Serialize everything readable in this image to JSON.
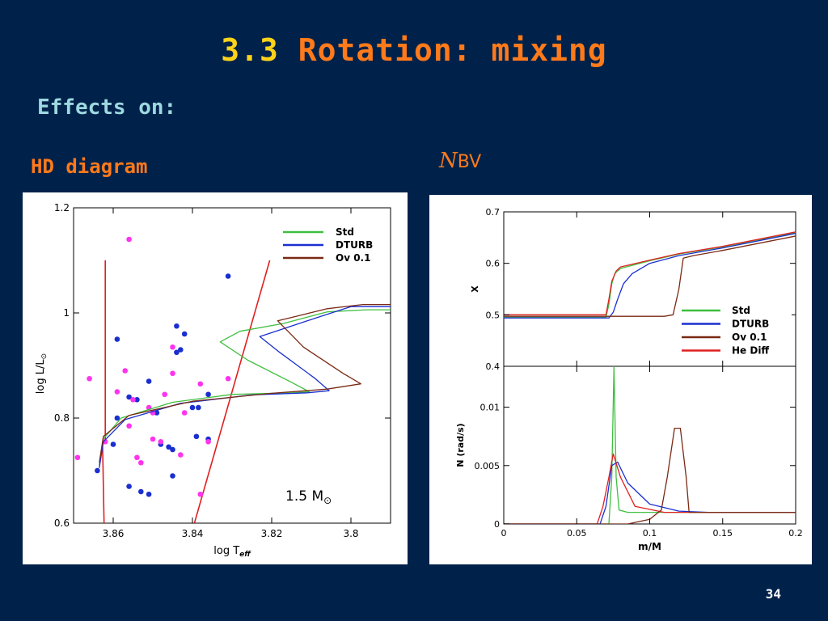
{
  "slide": {
    "title_number": "3.3",
    "title_text": "Rotation: mixing",
    "subtitle": "Effects on:",
    "label_left": "HD diagram",
    "label_right_symbol": "N",
    "label_right_sub": "BV",
    "page_number": "34"
  },
  "colors": {
    "background": "#00224a",
    "title_number": "#ffd21a",
    "title_text": "#ff7a1a",
    "subtitle": "#9ed8e0",
    "std": "#3fbf3f",
    "dturb": "#1a2fd0",
    "ov": "#7a2a14",
    "hediff": "#e02020",
    "dot_blue": "#1a2fd0",
    "dot_magenta": "#ff33ee"
  },
  "chart_data": [
    {
      "type": "line",
      "name": "HR diagram",
      "xlabel": "log T",
      "xlabel_sub": "eff",
      "ylabel": "log L/L",
      "ylabel_sub": "⊙",
      "xlim": [
        3.87,
        3.79
      ],
      "ylim": [
        0.6,
        1.2
      ],
      "x_ticks": [
        "3.86",
        "3.84",
        "3.82",
        "3.8"
      ],
      "x_tick_values": [
        3.86,
        3.84,
        3.82,
        3.8
      ],
      "y_ticks": [
        "0.6",
        "0.8",
        "1",
        "1.2"
      ],
      "y_tick_values": [
        0.6,
        0.8,
        1.0,
        1.2
      ],
      "annotation": "1.5 M",
      "annotation_sub": "⊙",
      "legend": [
        "Std",
        "DTURB",
        "Ov 0.1"
      ],
      "series": [
        {
          "name": "Std",
          "color": "#3fbf3f",
          "points": [
            [
              3.8635,
              0.71
            ],
            [
              3.8625,
              0.76
            ],
            [
              3.858,
              0.8
            ],
            [
              3.845,
              0.83
            ],
            [
              3.83,
              0.845
            ],
            [
              3.815,
              0.848
            ],
            [
              3.8105,
              0.85
            ],
            [
              3.815,
              0.868
            ],
            [
              3.826,
              0.91
            ],
            [
              3.833,
              0.945
            ],
            [
              3.828,
              0.965
            ],
            [
              3.817,
              0.98
            ],
            [
              3.806,
              1.002
            ],
            [
              3.796,
              1.006
            ],
            [
              3.79,
              1.006
            ]
          ]
        },
        {
          "name": "DTURB",
          "color": "#1a2fd0",
          "points": [
            [
              3.8635,
              0.705
            ],
            [
              3.8625,
              0.755
            ],
            [
              3.857,
              0.797
            ],
            [
              3.843,
              0.828
            ],
            [
              3.825,
              0.844
            ],
            [
              3.811,
              0.848
            ],
            [
              3.8055,
              0.852
            ],
            [
              3.809,
              0.875
            ],
            [
              3.818,
              0.925
            ],
            [
              3.823,
              0.955
            ],
            [
              3.817,
              0.97
            ],
            [
              3.809,
              0.99
            ],
            [
              3.8,
              1.012
            ],
            [
              3.79,
              1.012
            ]
          ]
        },
        {
          "name": "Ov 0.1",
          "color": "#7a2a14",
          "points": [
            [
              3.8635,
              0.715
            ],
            [
              3.8625,
              0.765
            ],
            [
              3.856,
              0.805
            ],
            [
              3.84,
              0.832
            ],
            [
              3.82,
              0.847
            ],
            [
              3.806,
              0.855
            ],
            [
              3.7975,
              0.865
            ],
            [
              3.802,
              0.885
            ],
            [
              3.812,
              0.935
            ],
            [
              3.8185,
              0.985
            ],
            [
              3.813,
              0.995
            ],
            [
              3.806,
              1.008
            ],
            [
              3.797,
              1.016
            ],
            [
              3.79,
              1.016
            ]
          ]
        }
      ],
      "red_lines": [
        [
          [
            3.8623,
            0.6
          ],
          [
            3.8627,
            0.755
          ],
          [
            3.8627,
            0.755
          ],
          [
            3.862,
            0.757
          ],
          [
            3.862,
            1.1
          ]
        ],
        [
          [
            3.8395,
            0.6
          ],
          [
            3.8205,
            1.1
          ]
        ]
      ],
      "dots_blue": [
        [
          3.864,
          0.7
        ],
        [
          3.86,
          0.75
        ],
        [
          3.859,
          0.8
        ],
        [
          3.859,
          0.95
        ],
        [
          3.856,
          0.84
        ],
        [
          3.854,
          0.835
        ],
        [
          3.856,
          0.67
        ],
        [
          3.853,
          0.66
        ],
        [
          3.851,
          0.87
        ],
        [
          3.851,
          0.655
        ],
        [
          3.849,
          0.81
        ],
        [
          3.848,
          0.75
        ],
        [
          3.846,
          0.745
        ],
        [
          3.845,
          0.69
        ],
        [
          3.845,
          0.74
        ],
        [
          3.844,
          0.975
        ],
        [
          3.844,
          0.925
        ],
        [
          3.843,
          0.93
        ],
        [
          3.842,
          0.96
        ],
        [
          3.84,
          0.82
        ],
        [
          3.839,
          0.765
        ],
        [
          3.836,
          0.845
        ],
        [
          3.831,
          1.07
        ],
        [
          3.8385,
          0.82
        ],
        [
          3.836,
          0.76
        ]
      ],
      "dots_magenta": [
        [
          3.869,
          0.725
        ],
        [
          3.866,
          0.875
        ],
        [
          3.862,
          0.755
        ],
        [
          3.859,
          0.85
        ],
        [
          3.857,
          0.89
        ],
        [
          3.856,
          1.14
        ],
        [
          3.856,
          0.785
        ],
        [
          3.855,
          0.835
        ],
        [
          3.854,
          0.725
        ],
        [
          3.853,
          0.715
        ],
        [
          3.851,
          0.82
        ],
        [
          3.85,
          0.81
        ],
        [
          3.85,
          0.76
        ],
        [
          3.848,
          0.755
        ],
        [
          3.847,
          0.845
        ],
        [
          3.845,
          0.935
        ],
        [
          3.845,
          0.885
        ],
        [
          3.843,
          0.73
        ],
        [
          3.842,
          0.81
        ],
        [
          3.838,
          0.865
        ],
        [
          3.838,
          0.655
        ],
        [
          3.836,
          0.755
        ],
        [
          3.831,
          0.875
        ]
      ]
    },
    {
      "type": "line",
      "name": "X profile",
      "xlabel": "",
      "ylabel": "X",
      "xlim": [
        0,
        0.2
      ],
      "ylim": [
        0.4,
        0.7
      ],
      "y_ticks": [
        "0.4",
        "0.5",
        "0.6",
        "0.7"
      ],
      "y_tick_values": [
        0.4,
        0.5,
        0.6,
        0.7
      ],
      "legend": [
        "Std",
        "DTURB",
        "Ov 0.1",
        "He Diff"
      ],
      "series": [
        {
          "name": "Std",
          "color": "#3fbf3f",
          "points": [
            [
              0,
              0.495
            ],
            [
              0.07,
              0.495
            ],
            [
              0.072,
              0.52
            ],
            [
              0.074,
              0.56
            ],
            [
              0.076,
              0.58
            ],
            [
              0.08,
              0.59
            ],
            [
              0.1,
              0.605
            ],
            [
              0.12,
              0.618
            ],
            [
              0.15,
              0.632
            ],
            [
              0.2,
              0.66
            ]
          ]
        },
        {
          "name": "DTURB",
          "color": "#1a2fd0",
          "points": [
            [
              0,
              0.494
            ],
            [
              0.072,
              0.494
            ],
            [
              0.075,
              0.505
            ],
            [
              0.078,
              0.53
            ],
            [
              0.082,
              0.56
            ],
            [
              0.088,
              0.58
            ],
            [
              0.1,
              0.6
            ],
            [
              0.12,
              0.615
            ],
            [
              0.15,
              0.63
            ],
            [
              0.2,
              0.658
            ]
          ]
        },
        {
          "name": "Ov 0.1",
          "color": "#7a2a14",
          "points": [
            [
              0,
              0.497
            ],
            [
              0.11,
              0.497
            ],
            [
              0.116,
              0.5
            ],
            [
              0.12,
              0.55
            ],
            [
              0.123,
              0.61
            ],
            [
              0.13,
              0.615
            ],
            [
              0.15,
              0.625
            ],
            [
              0.2,
              0.653
            ]
          ]
        },
        {
          "name": "He Diff",
          "color": "#e02020",
          "points": [
            [
              0,
              0.5
            ],
            [
              0.07,
              0.5
            ],
            [
              0.072,
              0.53
            ],
            [
              0.074,
              0.565
            ],
            [
              0.077,
              0.585
            ],
            [
              0.08,
              0.593
            ],
            [
              0.1,
              0.606
            ],
            [
              0.12,
              0.619
            ],
            [
              0.15,
              0.633
            ],
            [
              0.2,
              0.661
            ]
          ]
        }
      ]
    },
    {
      "type": "line",
      "name": "N profile",
      "xlabel": "m/M",
      "ylabel": "N (rad/s)",
      "xlim": [
        0,
        0.2
      ],
      "ylim": [
        0,
        0.0135
      ],
      "x_ticks": [
        "0",
        "0.05",
        "0.1",
        "0.15",
        "0.2"
      ],
      "x_tick_values": [
        0,
        0.05,
        0.1,
        0.15,
        0.2
      ],
      "y_ticks": [
        "0",
        "0.005",
        "0.01"
      ],
      "y_tick_values": [
        0,
        0.005,
        0.01
      ],
      "series": [
        {
          "name": "Std",
          "color": "#3fbf3f",
          "points": [
            [
              0,
              0
            ],
            [
              0.072,
              0
            ],
            [
              0.074,
              0.004
            ],
            [
              0.0755,
              0.0135
            ],
            [
              0.077,
              0.004
            ],
            [
              0.079,
              0.0012
            ],
            [
              0.085,
              0.001
            ],
            [
              0.2,
              0.001
            ]
          ]
        },
        {
          "name": "DTURB",
          "color": "#1a2fd0",
          "points": [
            [
              0,
              0
            ],
            [
              0.066,
              0
            ],
            [
              0.07,
              0.0015
            ],
            [
              0.074,
              0.005
            ],
            [
              0.078,
              0.0053
            ],
            [
              0.085,
              0.0035
            ],
            [
              0.1,
              0.0017
            ],
            [
              0.12,
              0.0011
            ],
            [
              0.14,
              0.001
            ],
            [
              0.2,
              0.001
            ]
          ]
        },
        {
          "name": "He Diff",
          "color": "#e02020",
          "points": [
            [
              0,
              0
            ],
            [
              0.064,
              0
            ],
            [
              0.068,
              0.0015
            ],
            [
              0.072,
              0.004
            ],
            [
              0.075,
              0.006
            ],
            [
              0.08,
              0.004
            ],
            [
              0.09,
              0.0015
            ],
            [
              0.11,
              0.001
            ],
            [
              0.14,
              0.001
            ],
            [
              0.2,
              0.001
            ]
          ]
        },
        {
          "name": "Ov 0.1",
          "color": "#7a2a14",
          "points": [
            [
              0,
              0
            ],
            [
              0.085,
              0
            ],
            [
              0.1,
              0.0004
            ],
            [
              0.108,
              0.0012
            ],
            [
              0.112,
              0.004
            ],
            [
              0.117,
              0.0082
            ],
            [
              0.121,
              0.0082
            ],
            [
              0.125,
              0.004
            ],
            [
              0.127,
              0.001
            ],
            [
              0.2,
              0.001
            ]
          ]
        }
      ]
    }
  ]
}
